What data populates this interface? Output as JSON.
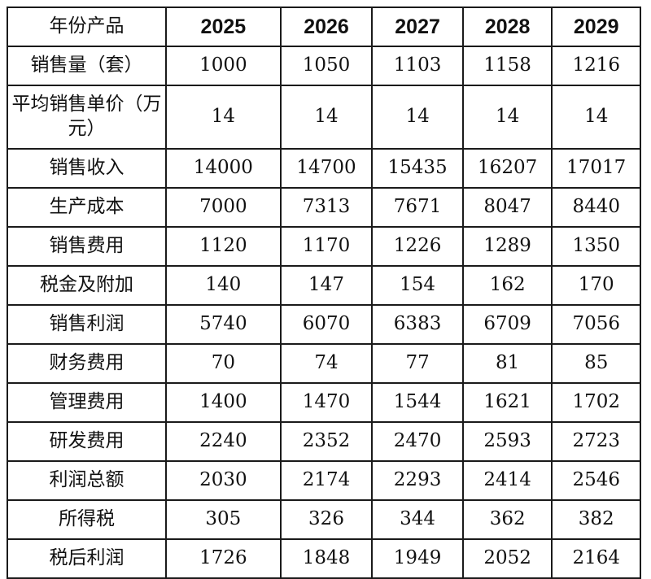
{
  "table": {
    "corner_header": "年份产品",
    "years": [
      "2025",
      "2026",
      "2027",
      "2028",
      "2029"
    ],
    "rows": [
      {
        "label": "销售量（套）",
        "values": [
          "1000",
          "1050",
          "1103",
          "1158",
          "1216"
        ]
      },
      {
        "label": "平均销售单价（万元）",
        "values": [
          "14",
          "14",
          "14",
          "14",
          "14"
        ]
      },
      {
        "label": "销售收入",
        "values": [
          "14000",
          "14700",
          "15435",
          "16207",
          "17017"
        ]
      },
      {
        "label": "生产成本",
        "values": [
          "7000",
          "7313",
          "7671",
          "8047",
          "8440"
        ]
      },
      {
        "label": "销售费用",
        "values": [
          "1120",
          "1170",
          "1226",
          "1289",
          "1350"
        ]
      },
      {
        "label": "税金及附加",
        "values": [
          "140",
          "147",
          "154",
          "162",
          "170"
        ]
      },
      {
        "label": "销售利润",
        "values": [
          "5740",
          "6070",
          "6383",
          "6709",
          "7056"
        ]
      },
      {
        "label": "财务费用",
        "values": [
          "70",
          "74",
          "77",
          "81",
          "85"
        ]
      },
      {
        "label": "管理费用",
        "values": [
          "1400",
          "1470",
          "1544",
          "1621",
          "1702"
        ]
      },
      {
        "label": "研发费用",
        "values": [
          "2240",
          "2352",
          "2470",
          "2593",
          "2723"
        ]
      },
      {
        "label": "利润总额",
        "values": [
          "2030",
          "2174",
          "2293",
          "2414",
          "2546"
        ]
      },
      {
        "label": "所得税",
        "values": [
          "305",
          "326",
          "344",
          "362",
          "382"
        ]
      },
      {
        "label": "税后利润",
        "values": [
          "1726",
          "1848",
          "1949",
          "2052",
          "2164"
        ]
      }
    ]
  }
}
